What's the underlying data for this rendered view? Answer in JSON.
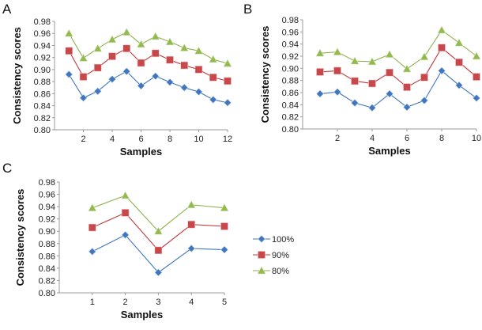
{
  "chart_data": [
    {
      "panel": "A",
      "type": "line",
      "xlabel": "Samples",
      "ylabel": "Consistency scores",
      "ylim": [
        0.8,
        0.98
      ],
      "xlim": [
        0,
        12
      ],
      "x": [
        1,
        2,
        3,
        4,
        5,
        6,
        7,
        8,
        9,
        10,
        11,
        12
      ],
      "xticks": [
        "2",
        "4",
        "6",
        "8",
        "10",
        "12"
      ],
      "yticks": [
        "0.80",
        "0.82",
        "0.84",
        "0.86",
        "0.88",
        "0.90",
        "0.92",
        "0.94",
        "0.96",
        "0.98"
      ],
      "series": [
        {
          "name": "100%",
          "values": [
            0.892,
            0.853,
            0.864,
            0.884,
            0.897,
            0.873,
            0.889,
            0.879,
            0.87,
            0.863,
            0.85,
            0.845
          ]
        },
        {
          "name": "90%",
          "values": [
            0.931,
            0.888,
            0.903,
            0.922,
            0.935,
            0.911,
            0.927,
            0.916,
            0.907,
            0.9,
            0.887,
            0.881
          ]
        },
        {
          "name": "80%",
          "values": [
            0.96,
            0.919,
            0.935,
            0.95,
            0.962,
            0.942,
            0.955,
            0.946,
            0.936,
            0.931,
            0.917,
            0.91
          ]
        }
      ]
    },
    {
      "panel": "B",
      "type": "line",
      "xlabel": "Samples",
      "ylabel": "Consistency scores",
      "ylim": [
        0.8,
        0.98
      ],
      "xlim": [
        0,
        10
      ],
      "x": [
        1,
        2,
        3,
        4,
        5,
        6,
        7,
        8,
        9,
        10
      ],
      "xticks": [
        "2",
        "4",
        "6",
        "8",
        "10"
      ],
      "yticks": [
        "0.80",
        "0.82",
        "0.84",
        "0.86",
        "0.88",
        "0.90",
        "0.92",
        "0.94",
        "0.96",
        "0.98"
      ],
      "series": [
        {
          "name": "100%",
          "values": [
            0.858,
            0.861,
            0.843,
            0.835,
            0.858,
            0.836,
            0.847,
            0.896,
            0.872,
            0.851
          ]
        },
        {
          "name": "90%",
          "values": [
            0.894,
            0.896,
            0.879,
            0.875,
            0.893,
            0.869,
            0.885,
            0.934,
            0.91,
            0.886
          ]
        },
        {
          "name": "80%",
          "values": [
            0.925,
            0.927,
            0.912,
            0.911,
            0.923,
            0.899,
            0.919,
            0.963,
            0.942,
            0.92
          ]
        }
      ]
    },
    {
      "panel": "C",
      "type": "line",
      "xlabel": "Samples",
      "ylabel": "Consistency scores",
      "ylim": [
        0.8,
        0.98
      ],
      "xlim": [
        0,
        5
      ],
      "x": [
        1,
        2,
        3,
        4,
        5
      ],
      "xticks": [
        "1",
        "2",
        "3",
        "4",
        "5"
      ],
      "yticks": [
        "0.80",
        "0.82",
        "0.84",
        "0.86",
        "0.88",
        "0.90",
        "0.92",
        "0.94",
        "0.96",
        "0.98"
      ],
      "legend": "right",
      "series": [
        {
          "name": "100%",
          "values": [
            0.867,
            0.894,
            0.833,
            0.872,
            0.87
          ]
        },
        {
          "name": "90%",
          "values": [
            0.906,
            0.93,
            0.869,
            0.911,
            0.908
          ]
        },
        {
          "name": "80%",
          "values": [
            0.938,
            0.958,
            0.9,
            0.943,
            0.938
          ]
        }
      ]
    }
  ],
  "styles": {
    "100%": {
      "color": "#3f76bd",
      "marker": "diamond"
    },
    "90%": {
      "color": "#c0393b",
      "fill": "#c8474a",
      "marker": "square"
    },
    "80%": {
      "color": "#8db24c",
      "fill": "#93ba4f",
      "marker": "triangle"
    }
  }
}
